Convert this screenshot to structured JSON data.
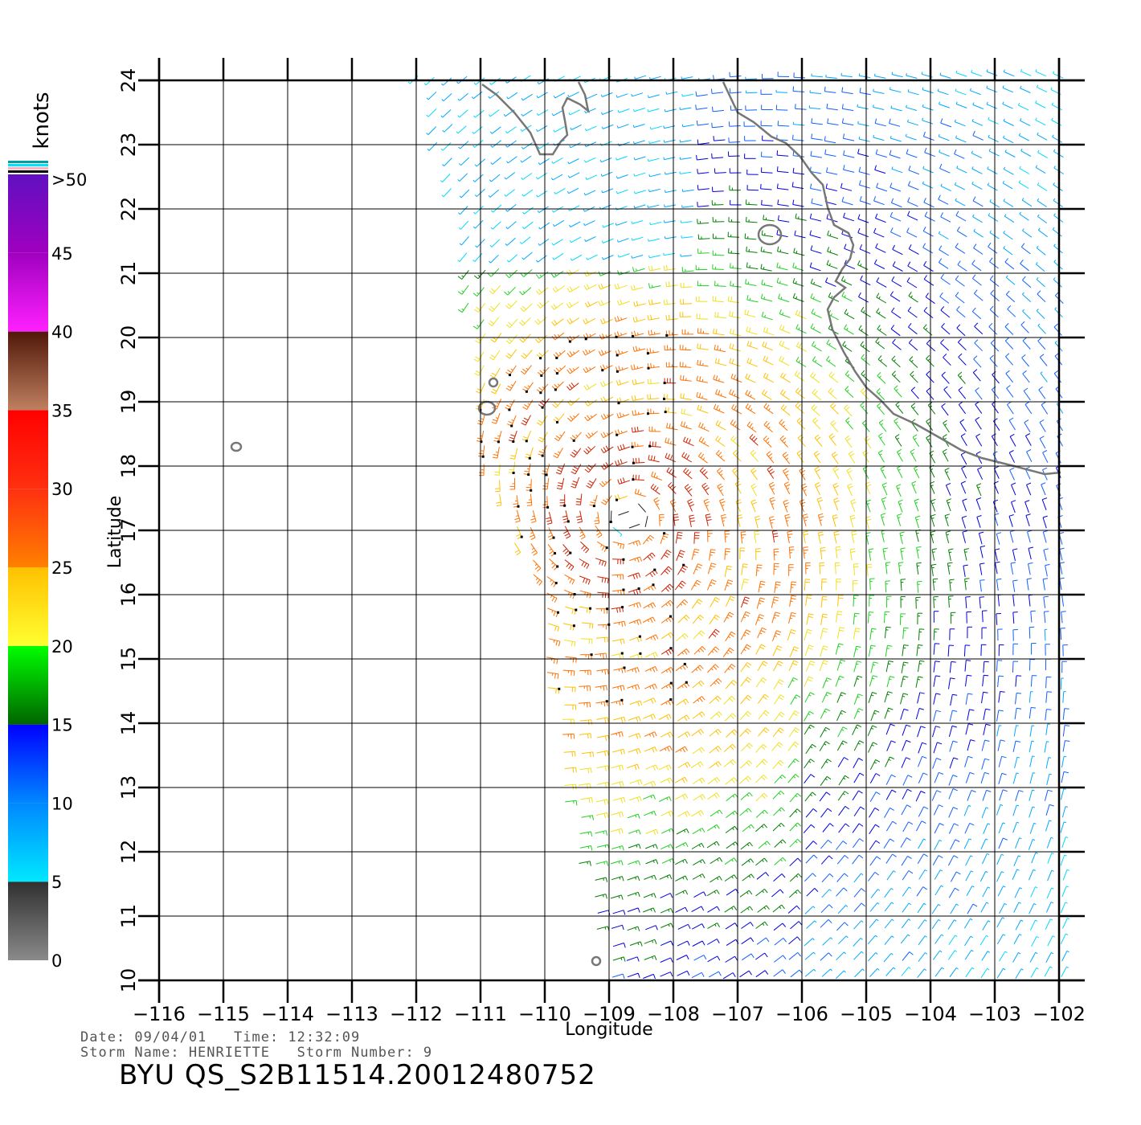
{
  "map": {
    "lon_range": [
      -116,
      -102
    ],
    "lat_range": [
      10,
      24
    ],
    "xlabel": "Longitude",
    "ylabel": "Latitude",
    "x_ticks": [
      "-116",
      "-115",
      "-114",
      "-113",
      "-112",
      "-111",
      "-110",
      "-109",
      "-108",
      "-107",
      "-106",
      "-105",
      "-104",
      "-103",
      "-102"
    ],
    "y_ticks": [
      "10",
      "11",
      "12",
      "13",
      "14",
      "15",
      "16",
      "17",
      "18",
      "19",
      "20",
      "21",
      "22",
      "23",
      "24"
    ],
    "coastline_color": "#777777",
    "grid_color": "#000000",
    "storm_center": {
      "lon": -108.7,
      "lat": 17.2
    },
    "swath_west_edge": [
      [
        -112.0,
        24.2
      ],
      [
        -111.3,
        21.5
      ],
      [
        -111.0,
        18.0
      ],
      [
        -110.1,
        16.0
      ],
      [
        -109.8,
        13.0
      ],
      [
        -109.0,
        10.0
      ]
    ],
    "islands": [
      {
        "name": "Socorro",
        "lon": -114.8,
        "lat": 18.3
      },
      {
        "name": "San Benedicto",
        "lon": -110.9,
        "lat": 18.9
      },
      {
        "name": "Clarion area",
        "lon": -110.8,
        "lat": 19.3
      },
      {
        "name": "Islas Marias",
        "lon": -106.5,
        "lat": 21.6
      },
      {
        "name": "Roca Partida",
        "lon": -109.2,
        "lat": 10.3
      }
    ]
  },
  "legend": {
    "title": "knots",
    "labels": [
      ">50",
      "45",
      "40",
      "35",
      "30",
      "25",
      "20",
      "15",
      "10",
      "5",
      "0"
    ],
    "stops": [
      {
        "value": 0,
        "color": "#8a8a8a"
      },
      {
        "value": 5,
        "color": "#303030"
      },
      {
        "value": 5,
        "color": "#00e8ff"
      },
      {
        "value": 10,
        "color": "#0088ff"
      },
      {
        "value": 15,
        "color": "#0000ff"
      },
      {
        "value": 15,
        "color": "#006400"
      },
      {
        "value": 20,
        "color": "#00ff00"
      },
      {
        "value": 20,
        "color": "#ffff30"
      },
      {
        "value": 25,
        "color": "#ffc000"
      },
      {
        "value": 25,
        "color": "#ff8000"
      },
      {
        "value": 30,
        "color": "#ff3010"
      },
      {
        "value": 35,
        "color": "#ff0000"
      },
      {
        "value": 35,
        "color": "#c08060"
      },
      {
        "value": 40,
        "color": "#501808"
      },
      {
        "value": 40,
        "color": "#ff20ff"
      },
      {
        "value": 45,
        "color": "#a000c0"
      },
      {
        "value": 50,
        "color": "#6010c0"
      }
    ],
    "top_stripe_colors": [
      "#00a0a0",
      "#00e0ff",
      "#ffb0c0",
      "#000000"
    ]
  },
  "footer": {
    "date_line": "Date: 09/04/01   Time: 12:32:09",
    "storm_line": "Storm Name: HENRIETTE   Storm Number: 9",
    "id_line": "BYU QS_S2B11514.20012480752"
  }
}
